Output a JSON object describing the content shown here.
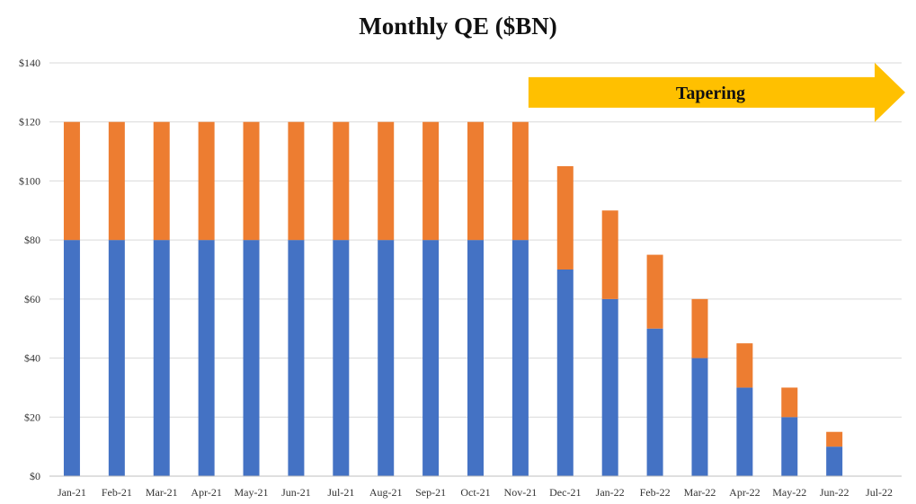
{
  "chart_data": {
    "type": "bar",
    "stacked": true,
    "title": "Monthly QE ($BN)",
    "xlabel": "",
    "ylabel": "",
    "ylim": [
      0,
      140
    ],
    "yticks": [
      "$0",
      "$20",
      "$40",
      "$60",
      "$80",
      "$100",
      "$120",
      "$140"
    ],
    "grid": true,
    "legend": "none",
    "categories": [
      "Jan-21",
      "Feb-21",
      "Mar-21",
      "Apr-21",
      "May-21",
      "Jun-21",
      "Jul-21",
      "Aug-21",
      "Sep-21",
      "Oct-21",
      "Nov-21",
      "Dec-21",
      "Jan-22",
      "Feb-22",
      "Mar-22",
      "Apr-22",
      "May-22",
      "Jun-22",
      "Jul-22"
    ],
    "series": [
      {
        "color": "#4472C4",
        "values": [
          80,
          80,
          80,
          80,
          80,
          80,
          80,
          80,
          80,
          80,
          80,
          70,
          60,
          50,
          40,
          30,
          20,
          10,
          0
        ]
      },
      {
        "color": "#ED7D31",
        "values": [
          40,
          40,
          40,
          40,
          40,
          40,
          40,
          40,
          40,
          40,
          40,
          35,
          30,
          25,
          20,
          15,
          10,
          5,
          0
        ]
      }
    ],
    "annotation": {
      "text": "Tapering",
      "color": "#FFC000",
      "from_category": "Nov-21",
      "to_category": "Jul-22",
      "y": 130
    }
  }
}
